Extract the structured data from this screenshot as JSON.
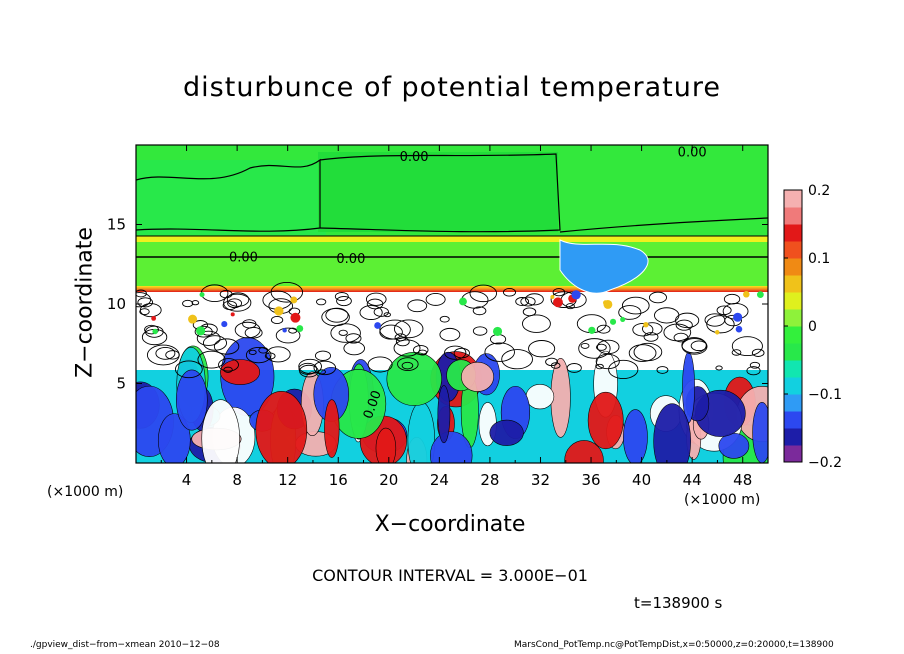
{
  "chart_data": {
    "type": "heatmap",
    "title": "disturbunce of potential temperature",
    "xlabel": "X−coordinate",
    "ylabel": "Z−coordinate",
    "x_unit": "(×1000 m)",
    "z_unit": "(×1000 m)",
    "xlim": [
      0,
      50
    ],
    "zlim": [
      0,
      20
    ],
    "x_ticks": [
      "4",
      "8",
      "12",
      "16",
      "20",
      "24",
      "28",
      "32",
      "36",
      "40",
      "44",
      "48"
    ],
    "z_ticks": [
      "5",
      "10",
      "15"
    ],
    "colorbar": {
      "range": [
        -0.2,
        0.2
      ],
      "ticks": [
        "0.2",
        "0.1",
        "0",
        "−0.1",
        "−0.2"
      ],
      "colors": [
        "#7b2a9b",
        "#1d1da8",
        "#2c48f0",
        "#2f9bf5",
        "#12d0e0",
        "#11e6b0",
        "#28e84a",
        "#33f03c",
        "#8ef23a",
        "#dff01e",
        "#f0c21a",
        "#f08a14",
        "#f0501e",
        "#e21818",
        "#f07a7a",
        "#f5b0b0"
      ]
    },
    "contour_labels": [
      "0.00",
      "0.00",
      "0.00",
      "0.00",
      "0.00"
    ],
    "contour_interval": 0.3
  },
  "contour_text": "CONTOUR INTERVAL = 3.000E−01",
  "time_text": "t=138900 s",
  "footer_left": "./gpview_dist−from−xmean  2010−12−08",
  "footer_right": "MarsCond_PotTemp.nc@PotTempDist,x=0:50000,z=0:20000,t=138900"
}
